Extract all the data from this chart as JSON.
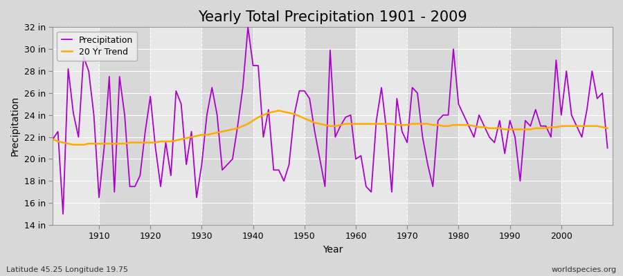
{
  "title": "Yearly Total Precipitation 1901 - 2009",
  "xlabel": "Year",
  "ylabel": "Precipitation",
  "bottom_left_label": "Latitude 45.25 Longitude 19.75",
  "bottom_right_label": "worldspecies.org",
  "years": [
    1901,
    1902,
    1903,
    1904,
    1905,
    1906,
    1907,
    1908,
    1909,
    1910,
    1911,
    1912,
    1913,
    1914,
    1915,
    1916,
    1917,
    1918,
    1919,
    1920,
    1921,
    1922,
    1923,
    1924,
    1925,
    1926,
    1927,
    1928,
    1929,
    1930,
    1931,
    1932,
    1933,
    1934,
    1935,
    1936,
    1937,
    1938,
    1939,
    1940,
    1941,
    1942,
    1943,
    1944,
    1945,
    1946,
    1947,
    1948,
    1949,
    1950,
    1951,
    1952,
    1953,
    1954,
    1955,
    1956,
    1957,
    1958,
    1959,
    1960,
    1961,
    1962,
    1963,
    1964,
    1965,
    1966,
    1967,
    1968,
    1969,
    1970,
    1971,
    1972,
    1973,
    1974,
    1975,
    1976,
    1977,
    1978,
    1979,
    1980,
    1981,
    1982,
    1983,
    1984,
    1985,
    1986,
    1987,
    1988,
    1989,
    1990,
    1991,
    1992,
    1993,
    1994,
    1995,
    1996,
    1997,
    1998,
    1999,
    2000,
    2001,
    2002,
    2003,
    2004,
    2005,
    2006,
    2007,
    2008,
    2009
  ],
  "precipitation": [
    21.8,
    22.5,
    15.0,
    28.2,
    24.2,
    22.0,
    29.3,
    28.0,
    24.0,
    16.5,
    21.0,
    27.5,
    17.0,
    27.5,
    24.0,
    17.5,
    17.5,
    18.5,
    22.5,
    25.7,
    21.0,
    17.5,
    21.5,
    18.5,
    26.2,
    25.0,
    19.5,
    22.5,
    16.5,
    19.5,
    24.0,
    26.5,
    24.0,
    19.0,
    19.5,
    20.0,
    23.0,
    26.5,
    32.0,
    28.5,
    28.5,
    22.0,
    24.5,
    19.0,
    19.0,
    18.0,
    19.5,
    24.0,
    26.2,
    26.2,
    25.5,
    22.5,
    20.0,
    17.5,
    29.9,
    22.0,
    23.0,
    23.8,
    24.0,
    20.0,
    20.3,
    17.5,
    17.0,
    23.5,
    26.5,
    22.5,
    17.0,
    25.5,
    22.5,
    21.5,
    26.5,
    26.0,
    22.0,
    19.5,
    17.5,
    23.5,
    24.0,
    24.0,
    30.0,
    25.0,
    24.0,
    23.0,
    22.0,
    24.0,
    23.0,
    22.0,
    21.5,
    23.5,
    20.5,
    23.5,
    22.0,
    18.0,
    23.5,
    23.0,
    24.5,
    23.0,
    23.0,
    22.0,
    29.0,
    24.0,
    28.0,
    24.0,
    23.0,
    22.0,
    24.5,
    28.0,
    25.5,
    26.0,
    21.0
  ],
  "trend": [
    21.8,
    21.6,
    21.5,
    21.4,
    21.3,
    21.3,
    21.3,
    21.4,
    21.4,
    21.4,
    21.4,
    21.4,
    21.4,
    21.4,
    21.4,
    21.5,
    21.5,
    21.5,
    21.5,
    21.5,
    21.5,
    21.6,
    21.6,
    21.6,
    21.7,
    21.8,
    21.9,
    22.0,
    22.1,
    22.2,
    22.2,
    22.3,
    22.4,
    22.5,
    22.6,
    22.7,
    22.8,
    23.0,
    23.2,
    23.5,
    23.8,
    24.0,
    24.2,
    24.3,
    24.4,
    24.3,
    24.2,
    24.1,
    23.9,
    23.7,
    23.5,
    23.3,
    23.2,
    23.1,
    23.0,
    23.0,
    23.1,
    23.2,
    23.2,
    23.2,
    23.2,
    23.2,
    23.2,
    23.2,
    23.2,
    23.2,
    23.2,
    23.1,
    23.1,
    23.1,
    23.2,
    23.2,
    23.2,
    23.2,
    23.1,
    23.1,
    23.0,
    23.0,
    23.1,
    23.1,
    23.1,
    23.1,
    23.0,
    22.9,
    22.9,
    22.8,
    22.8,
    22.8,
    22.7,
    22.7,
    22.7,
    22.7,
    22.7,
    22.7,
    22.8,
    22.8,
    22.8,
    22.9,
    22.9,
    23.0,
    23.0,
    23.0,
    23.0,
    23.0,
    23.0,
    23.0,
    23.0,
    22.9,
    22.8
  ],
  "precip_color": "#aa00cc",
  "trend_color": "#ffaa00",
  "figure_bg_color": "#d8d8d8",
  "plot_bg_color_light": "#e8e8e8",
  "plot_bg_color_dark": "#d8d8d8",
  "grid_color": "#ffffff",
  "ylim": [
    14,
    32
  ],
  "ytick_labels": [
    "14 in",
    "16 in",
    "18 in",
    "20 in",
    "22 in",
    "24 in",
    "26 in",
    "28 in",
    "30 in",
    "32 in"
  ],
  "ytick_values": [
    14,
    16,
    18,
    20,
    22,
    24,
    26,
    28,
    30,
    32
  ],
  "xlim_start": 1901,
  "xlim_end": 2010,
  "title_fontsize": 15,
  "axis_label_fontsize": 10,
  "tick_fontsize": 9,
  "legend_fontsize": 9,
  "dashed_line_y": 32,
  "decade_ticks": [
    1910,
    1920,
    1930,
    1940,
    1950,
    1960,
    1970,
    1980,
    1990,
    2000
  ]
}
